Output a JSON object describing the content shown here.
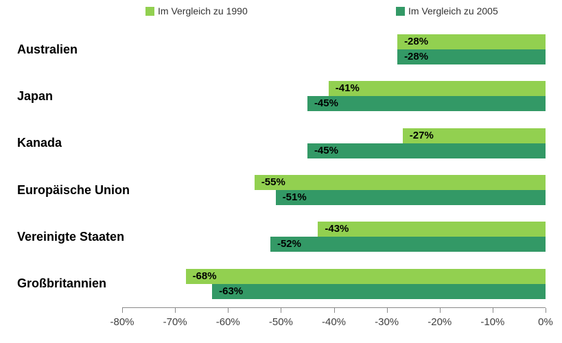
{
  "chart_data": {
    "type": "bar",
    "orientation": "horizontal",
    "title": "",
    "categories": [
      "Australien",
      "Japan",
      "Kanada",
      "Europäische Union",
      "Vereinigte Staaten",
      "Großbritannien"
    ],
    "series": [
      {
        "name": "Im Vergleich zu 1990",
        "color": "#92d050",
        "values": [
          -28,
          -41,
          -27,
          -55,
          -43,
          -68
        ]
      },
      {
        "name": "Im Vergleich zu 2005",
        "color": "#339966",
        "values": [
          -28,
          -45,
          -45,
          -51,
          -52,
          -63
        ]
      }
    ],
    "value_label_suffix": "%",
    "xlim": [
      -80,
      0
    ],
    "xticks": [
      "-80%",
      "-70%",
      "-60%",
      "-50%",
      "-40%",
      "-30%",
      "-20%",
      "-10%",
      "0%"
    ],
    "grid": false,
    "legend_position": "top",
    "axis_line_color": "#898989",
    "label_color": "#000000"
  }
}
